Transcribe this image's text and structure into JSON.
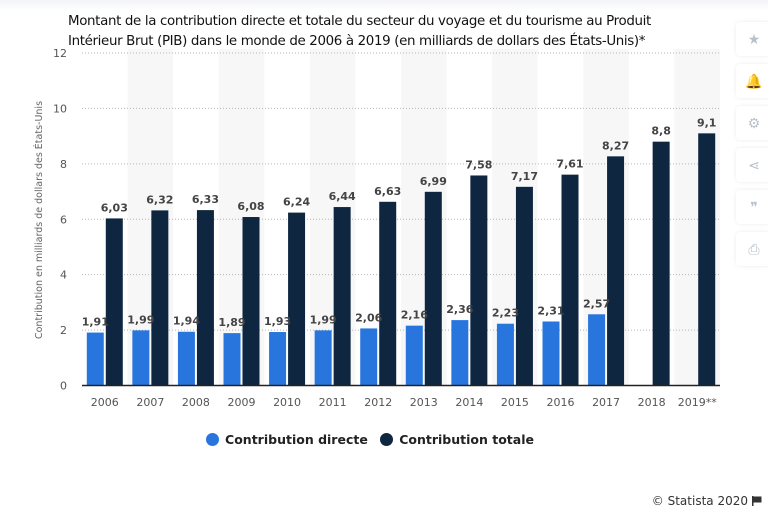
{
  "title": "Montant de la contribution directe et totale du secteur du voyage et du tourisme au Produit Intérieur Brut (PIB) dans le monde de 2006 à 2019 (en milliards de dollars des États-Unis)*",
  "sidebar": {
    "items": [
      {
        "icon": "star-icon",
        "glyph": "★"
      },
      {
        "icon": "bell-icon",
        "glyph": "🔔"
      },
      {
        "icon": "gear-icon",
        "glyph": "⚙"
      },
      {
        "icon": "share-icon",
        "glyph": "⋖"
      },
      {
        "icon": "quote-icon",
        "glyph": "❞"
      },
      {
        "icon": "print-icon",
        "glyph": "⎙"
      }
    ]
  },
  "credit": "© Statista 2020",
  "colors": {
    "directe": "#2876dd",
    "totale": "#0f2640",
    "band": "#f7f7f7",
    "grid": "#b5b5b5"
  },
  "chart_data": {
    "type": "bar",
    "title": "Montant de la contribution directe et totale du secteur du voyage et du tourisme au Produit Intérieur Brut (PIB) dans le monde de 2006 à 2019 (en milliards de dollars des États-Unis)*",
    "xlabel": "",
    "ylabel": "Contribution en milliards de dollars des États-Unis",
    "ylim": [
      0,
      12
    ],
    "yticks": [
      0,
      2,
      4,
      6,
      8,
      10,
      12
    ],
    "grid": true,
    "legend_position": "bottom",
    "categories": [
      "2006",
      "2007",
      "2008",
      "2009",
      "2010",
      "2011",
      "2012",
      "2013",
      "2014",
      "2015",
      "2016",
      "2017",
      "2018",
      "2019**"
    ],
    "series": [
      {
        "name": "Contribution directe",
        "values": [
          1.91,
          1.99,
          1.94,
          1.89,
          1.93,
          1.99,
          2.06,
          2.16,
          2.36,
          2.23,
          2.31,
          2.57,
          null,
          null
        ],
        "labels": [
          "1,91",
          "1,99",
          "1,94",
          "1,89",
          "1,93",
          "1,99",
          "2,06",
          "2,16",
          "2,36",
          "2,23",
          "2,31",
          "2,57",
          "",
          ""
        ]
      },
      {
        "name": "Contribution totale",
        "values": [
          6.03,
          6.32,
          6.33,
          6.08,
          6.24,
          6.44,
          6.63,
          6.99,
          7.58,
          7.17,
          7.61,
          8.27,
          8.8,
          9.1
        ],
        "labels": [
          "6,03",
          "6,32",
          "6,33",
          "6,08",
          "6,24",
          "6,44",
          "6,63",
          "6,99",
          "7,58",
          "7,17",
          "7,61",
          "8,27",
          "8,8",
          "9,1"
        ]
      }
    ]
  }
}
